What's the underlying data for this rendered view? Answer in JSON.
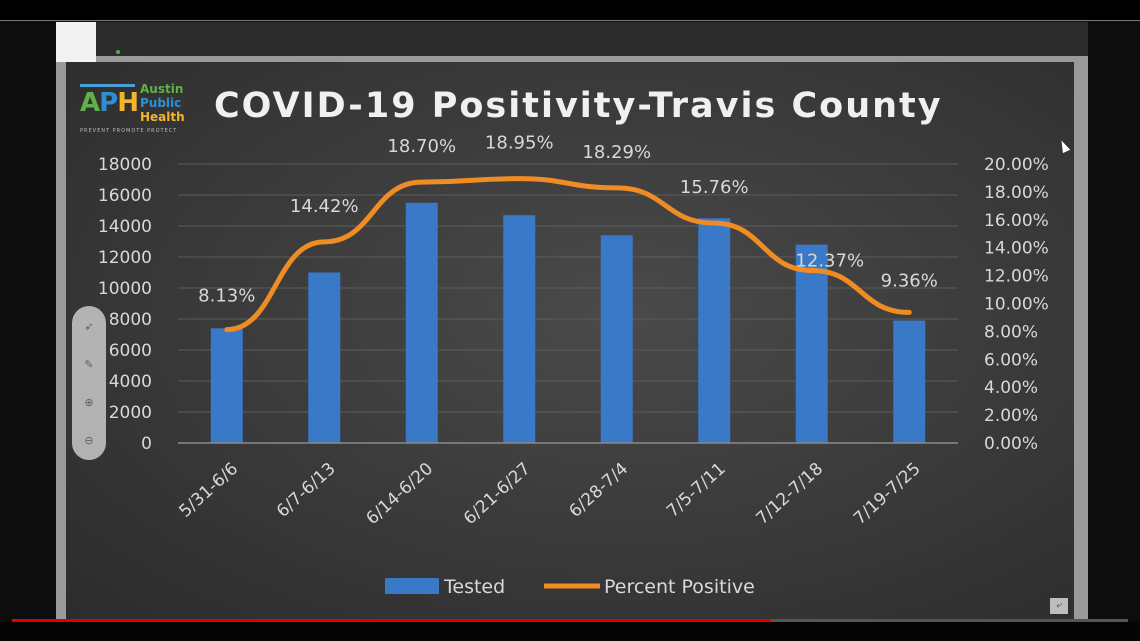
{
  "video": {
    "progress": 0.68
  },
  "logo": {
    "mark": [
      "A",
      "P",
      "H"
    ],
    "words": [
      "Austin",
      "Public",
      "Health"
    ],
    "tagline": "PREVENT PROMOTE PROTECT"
  },
  "toolbox": {
    "icons": [
      "pointer-icon",
      "pen-icon",
      "zoom-in-icon",
      "zoom-out-icon"
    ]
  },
  "chart_data": {
    "type": "bar",
    "title": "COVID-19 Positivity-Travis County",
    "categories": [
      "5/31-6/6",
      "6/7-6/13",
      "6/14-6/20",
      "6/21-6/27",
      "6/28-7/4",
      "7/5-7/11",
      "7/12-7/18",
      "7/19-7/25"
    ],
    "series": [
      {
        "name": "Tested",
        "type": "bar",
        "axis": "left",
        "color": "#3a78c8",
        "values": [
          7400,
          11000,
          15500,
          14700,
          13400,
          14500,
          12800,
          7900
        ]
      },
      {
        "name": "Percent Positive",
        "type": "line",
        "axis": "right",
        "color": "#f08c24",
        "values": [
          8.13,
          14.42,
          18.7,
          18.95,
          18.29,
          15.76,
          12.37,
          9.36
        ],
        "labels": [
          "8.13%",
          "14.42%",
          "18.70%",
          "18.95%",
          "18.29%",
          "15.76%",
          "12.37%",
          "9.36%"
        ]
      }
    ],
    "y_left": {
      "min": 0,
      "max": 18000,
      "ticks": [
        "0",
        "2000",
        "4000",
        "6000",
        "8000",
        "10000",
        "12000",
        "14000",
        "16000",
        "18000"
      ]
    },
    "y_right": {
      "min": 0,
      "max": 20,
      "ticks": [
        "0.00%",
        "2.00%",
        "4.00%",
        "6.00%",
        "8.00%",
        "10.00%",
        "12.00%",
        "14.00%",
        "16.00%",
        "18.00%",
        "20.00%"
      ]
    },
    "grid": true,
    "legend": "bottom"
  }
}
